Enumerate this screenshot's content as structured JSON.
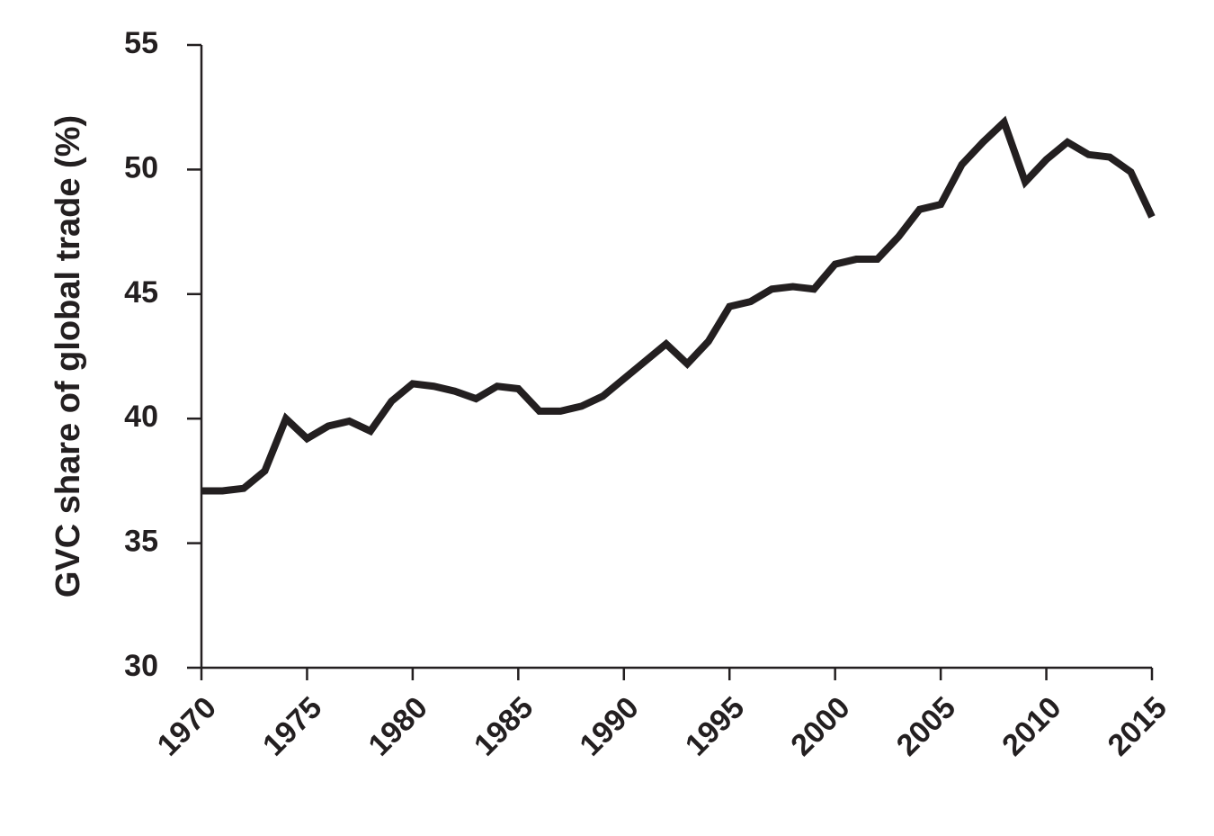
{
  "chart_data": {
    "type": "line",
    "y_label": "GVC share of  global trade (%)",
    "x": [
      1970,
      1971,
      1972,
      1973,
      1974,
      1975,
      1976,
      1977,
      1978,
      1979,
      1980,
      1981,
      1982,
      1983,
      1984,
      1985,
      1986,
      1987,
      1988,
      1989,
      1990,
      1991,
      1992,
      1993,
      1994,
      1995,
      1996,
      1997,
      1998,
      1999,
      2000,
      2001,
      2002,
      2003,
      2004,
      2005,
      2006,
      2007,
      2008,
      2009,
      2010,
      2011,
      2012,
      2013,
      2014,
      2015
    ],
    "series": [
      {
        "color": "#231f20",
        "values": [
          37.1,
          37.1,
          37.2,
          37.9,
          40.0,
          39.2,
          39.7,
          39.9,
          39.5,
          40.7,
          41.4,
          41.3,
          41.1,
          40.8,
          41.3,
          41.2,
          40.3,
          40.3,
          40.5,
          40.9,
          41.6,
          42.3,
          43.0,
          42.2,
          43.1,
          44.5,
          44.7,
          45.2,
          45.3,
          45.2,
          46.2,
          46.4,
          46.4,
          47.3,
          48.4,
          48.6,
          50.2,
          51.1,
          51.9,
          49.5,
          50.4,
          51.1,
          50.6,
          50.5,
          49.9,
          48.1
        ]
      }
    ],
    "xlim": [
      1970,
      2015
    ],
    "xticks": [
      1970,
      1975,
      1980,
      1985,
      1990,
      1995,
      2000,
      2005,
      2010,
      2015
    ],
    "ylim": [
      30,
      55
    ],
    "yticks": [
      30,
      35,
      40,
      45,
      50,
      55
    ]
  }
}
